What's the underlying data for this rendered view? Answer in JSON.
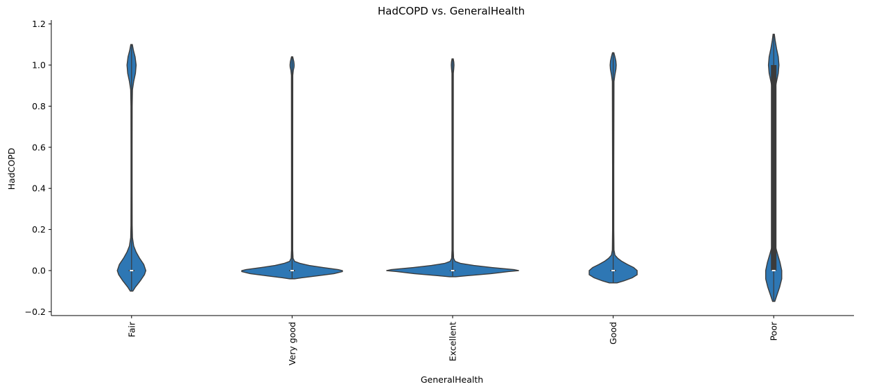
{
  "chart_data": {
    "type": "violin",
    "title": "HadCOPD vs. GeneralHealth",
    "xlabel": "GeneralHealth",
    "ylabel": "HadCOPD",
    "ylim": [
      -0.22,
      1.22
    ],
    "yticks": [
      -0.2,
      0.0,
      0.2,
      0.4,
      0.6,
      0.8,
      1.0,
      1.2
    ],
    "ytick_labels": [
      "−0.2",
      "0.0",
      "0.2",
      "0.4",
      "0.6",
      "0.8",
      "1.0",
      "1.2"
    ],
    "x_tick_rotation": 90,
    "grid": false,
    "spines": "left-bottom",
    "colors": {
      "violin_fill": "#2e77b4",
      "violin_edge": "#3b3b3b",
      "box": "#3b3b3b",
      "median": "#ffffff"
    },
    "categories": [
      "Fair",
      "Very good",
      "Excellent",
      "Good",
      "Poor"
    ],
    "violins": [
      {
        "category": "Fair",
        "y_min": -0.1,
        "y_max": 1.1,
        "density": [
          [
            -0.1,
            0.012
          ],
          [
            -0.08,
            0.05
          ],
          [
            -0.05,
            0.12
          ],
          [
            -0.02,
            0.18
          ],
          [
            0.0,
            0.2
          ],
          [
            0.03,
            0.17
          ],
          [
            0.06,
            0.11
          ],
          [
            0.09,
            0.06
          ],
          [
            0.12,
            0.025
          ],
          [
            0.16,
            0.007
          ],
          [
            0.22,
            0.003
          ],
          [
            0.4,
            0.002
          ],
          [
            0.6,
            0.002
          ],
          [
            0.8,
            0.003
          ],
          [
            0.88,
            0.007
          ],
          [
            0.92,
            0.025
          ],
          [
            0.96,
            0.05
          ],
          [
            1.0,
            0.06
          ],
          [
            1.04,
            0.045
          ],
          [
            1.07,
            0.022
          ],
          [
            1.1,
            0.005
          ]
        ],
        "quartiles": [
          0.0,
          0.0
        ],
        "median": 0.0
      },
      {
        "category": "Very good",
        "y_min": -0.04,
        "y_max": 1.04,
        "density": [
          [
            -0.04,
            0.03
          ],
          [
            -0.035,
            0.13
          ],
          [
            -0.025,
            0.37
          ],
          [
            -0.015,
            0.6
          ],
          [
            -0.005,
            0.72
          ],
          [
            0.0,
            0.72
          ],
          [
            0.005,
            0.66
          ],
          [
            0.015,
            0.44
          ],
          [
            0.025,
            0.24
          ],
          [
            0.035,
            0.11
          ],
          [
            0.045,
            0.03
          ],
          [
            0.06,
            0.008
          ],
          [
            0.1,
            0.003
          ],
          [
            0.5,
            0.003
          ],
          [
            0.95,
            0.004
          ],
          [
            0.975,
            0.012
          ],
          [
            0.99,
            0.022
          ],
          [
            1.0,
            0.024
          ],
          [
            1.015,
            0.02
          ],
          [
            1.03,
            0.01
          ],
          [
            1.04,
            0.003
          ]
        ],
        "quartiles": [
          0.0,
          0.0
        ],
        "median": 0.0
      },
      {
        "category": "Excellent",
        "y_min": -0.03,
        "y_max": 1.03,
        "density": [
          [
            -0.03,
            0.04
          ],
          [
            -0.025,
            0.2
          ],
          [
            -0.015,
            0.55
          ],
          [
            -0.005,
            0.8
          ],
          [
            0.0,
            0.95
          ],
          [
            0.005,
            0.88
          ],
          [
            0.015,
            0.56
          ],
          [
            0.025,
            0.3
          ],
          [
            0.035,
            0.11
          ],
          [
            0.045,
            0.03
          ],
          [
            0.06,
            0.008
          ],
          [
            0.1,
            0.003
          ],
          [
            0.5,
            0.003
          ],
          [
            0.96,
            0.004
          ],
          [
            0.98,
            0.01
          ],
          [
            1.0,
            0.014
          ],
          [
            1.015,
            0.011
          ],
          [
            1.03,
            0.003
          ]
        ],
        "quartiles": [
          0.0,
          0.0
        ],
        "median": 0.0
      },
      {
        "category": "Good",
        "y_min": -0.06,
        "y_max": 1.06,
        "density": [
          [
            -0.06,
            0.05
          ],
          [
            -0.05,
            0.15
          ],
          [
            -0.035,
            0.27
          ],
          [
            -0.02,
            0.34
          ],
          [
            0.0,
            0.34
          ],
          [
            0.015,
            0.29
          ],
          [
            0.03,
            0.2
          ],
          [
            0.045,
            0.12
          ],
          [
            0.06,
            0.06
          ],
          [
            0.075,
            0.02
          ],
          [
            0.1,
            0.006
          ],
          [
            0.2,
            0.003
          ],
          [
            0.5,
            0.003
          ],
          [
            0.92,
            0.006
          ],
          [
            0.95,
            0.018
          ],
          [
            0.98,
            0.034
          ],
          [
            1.0,
            0.038
          ],
          [
            1.02,
            0.033
          ],
          [
            1.04,
            0.02
          ],
          [
            1.06,
            0.004
          ]
        ],
        "quartiles": [
          0.0,
          0.0
        ],
        "median": 0.0
      },
      {
        "category": "Poor",
        "y_min": -0.15,
        "y_max": 1.15,
        "density": [
          [
            -0.15,
            0.01
          ],
          [
            -0.12,
            0.04
          ],
          [
            -0.08,
            0.08
          ],
          [
            -0.04,
            0.11
          ],
          [
            0.0,
            0.11
          ],
          [
            0.04,
            0.085
          ],
          [
            0.08,
            0.05
          ],
          [
            0.11,
            0.025
          ],
          [
            0.14,
            0.01
          ],
          [
            0.2,
            0.005
          ],
          [
            0.4,
            0.004
          ],
          [
            0.6,
            0.004
          ],
          [
            0.8,
            0.005
          ],
          [
            0.88,
            0.012
          ],
          [
            0.92,
            0.035
          ],
          [
            0.96,
            0.06
          ],
          [
            1.0,
            0.07
          ],
          [
            1.04,
            0.06
          ],
          [
            1.08,
            0.035
          ],
          [
            1.12,
            0.015
          ],
          [
            1.15,
            0.003
          ]
        ],
        "quartiles": [
          0.0,
          1.0
        ],
        "median": 0.0
      }
    ]
  }
}
